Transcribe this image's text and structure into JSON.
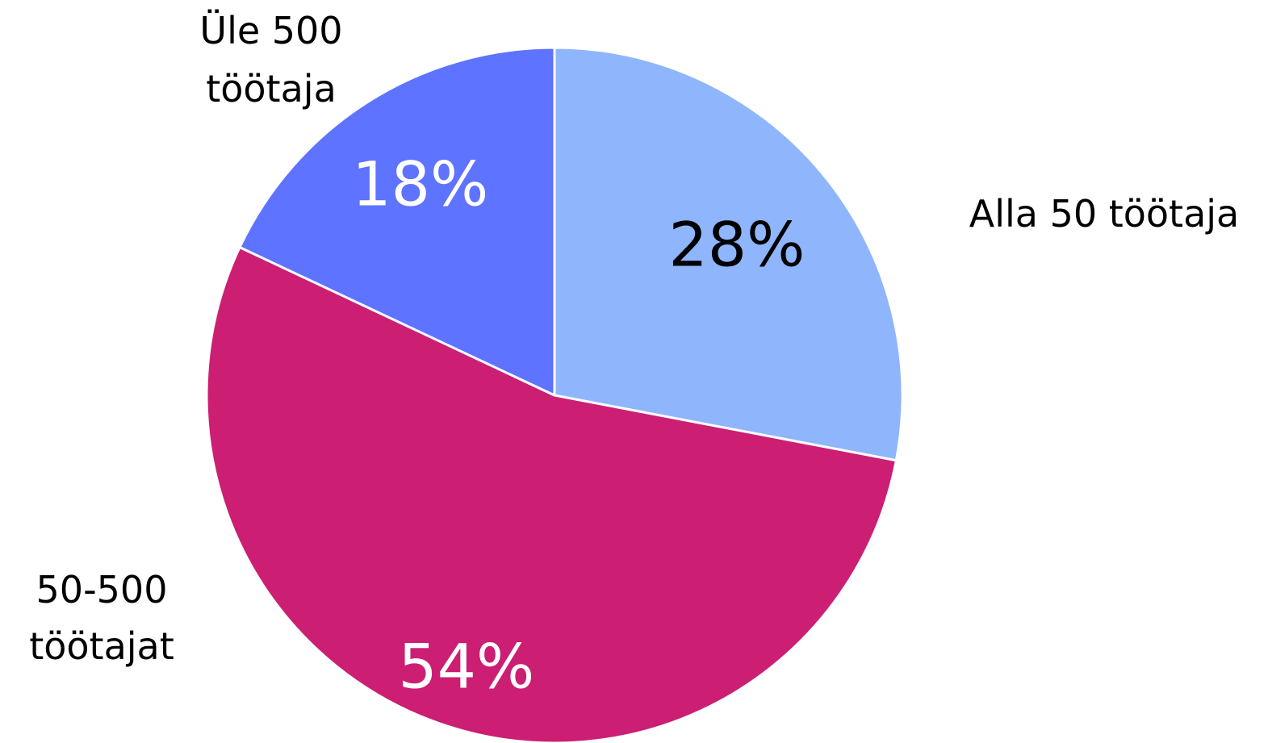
{
  "chart_data": {
    "type": "pie",
    "title": "",
    "start": "top",
    "direction": "clockwise",
    "slices": [
      {
        "label_lines": [
          "Alla 50 töötaja"
        ],
        "value": 28,
        "value_label": "28%",
        "color": "#8fb5fd",
        "value_label_color": "#000000"
      },
      {
        "label_lines": [
          "50-500",
          "töötajat"
        ],
        "value": 54,
        "value_label": "54%",
        "color": "#cc1e73",
        "value_label_color": "#ffffff"
      },
      {
        "label_lines": [
          "Üle 500",
          "töötaja"
        ],
        "value": 18,
        "value_label": "18%",
        "color": "#5e73ff",
        "value_label_color": "#ffffff"
      }
    ]
  }
}
